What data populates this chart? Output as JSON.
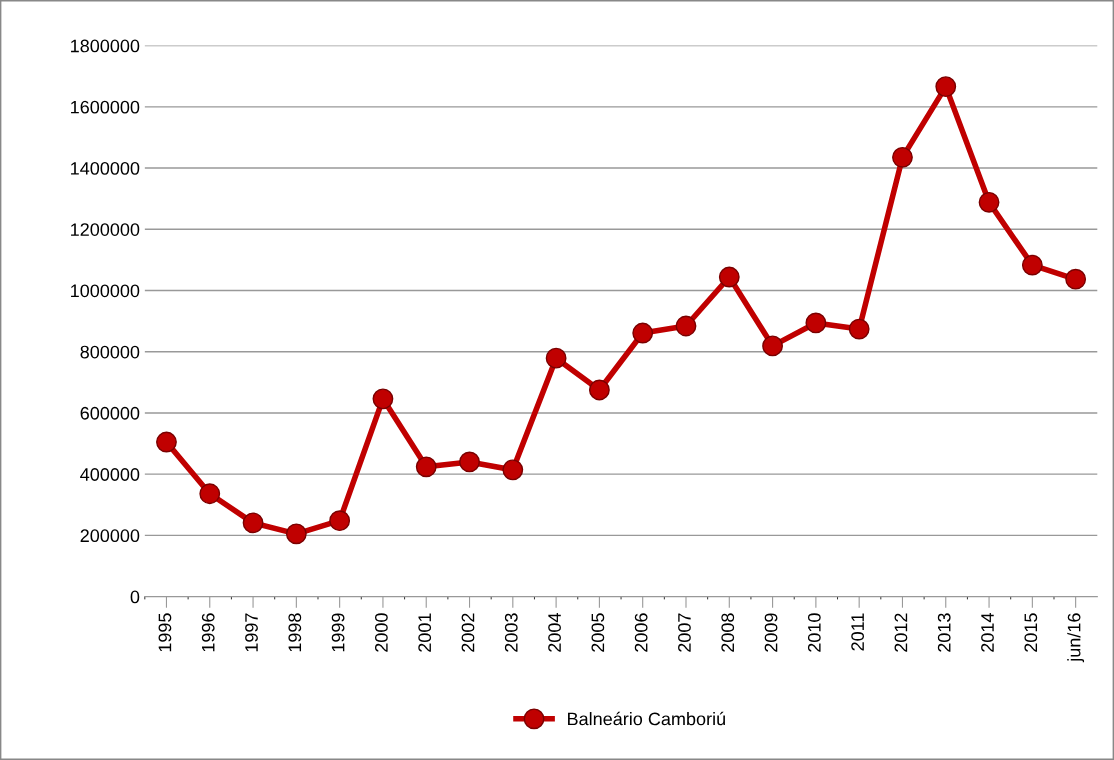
{
  "chart_data": {
    "type": "line",
    "categories": [
      "1995",
      "1996",
      "1997",
      "1998",
      "1999",
      "2000",
      "2001",
      "2002",
      "2003",
      "2004",
      "2005",
      "2006",
      "2007",
      "2008",
      "2009",
      "2010",
      "2011",
      "2012",
      "2013",
      "2014",
      "2015",
      "jun/16"
    ],
    "series": [
      {
        "name": "Balneário Camboriú",
        "color": "#c00000",
        "values": [
          505000,
          336000,
          241000,
          205000,
          248000,
          646000,
          424000,
          440000,
          414000,
          779000,
          675000,
          861000,
          884000,
          1044000,
          819000,
          894000,
          874000,
          1435000,
          1666000,
          1288000,
          1083000,
          1037000
        ]
      }
    ],
    "ylim": [
      0,
      1800000
    ],
    "yticks": [
      0,
      200000,
      400000,
      600000,
      800000,
      1000000,
      1200000,
      1400000,
      1600000,
      1800000
    ],
    "grid": "y",
    "legend": "bottom",
    "marker": "circle",
    "line_style": "solid"
  }
}
